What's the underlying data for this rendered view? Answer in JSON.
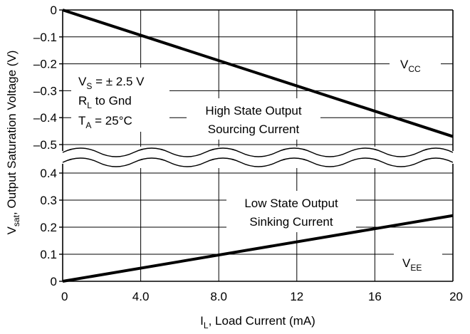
{
  "chart_data": {
    "type": "line",
    "x": {
      "label": "L",
      "label_prefix": "I",
      "label_rest": ", Load Current (mA)",
      "range": [
        0,
        20
      ],
      "ticks": [
        0,
        4.0,
        8.0,
        12,
        16,
        20
      ],
      "tick_labels": [
        "0",
        "4.0",
        "8.0",
        "12",
        "16",
        "20"
      ]
    },
    "y": {
      "label_prefix": "V",
      "label_sub": "sat",
      "label_rest": ", Output Saturation Voltage (V)",
      "upper_range": [
        -0.5,
        0
      ],
      "upper_ticks": [
        0,
        -0.1,
        -0.2,
        -0.3,
        -0.4,
        -0.5
      ],
      "upper_tick_labels": [
        "0",
        "–0.1",
        "–0.2",
        "–0.3",
        "–0.4",
        "–0.5"
      ],
      "lower_range": [
        0,
        0.4
      ],
      "lower_ticks": [
        0.4,
        0.3,
        0.2,
        0.1,
        0
      ],
      "lower_tick_labels": [
        "0.4",
        "0.3",
        "0.2",
        "0.1",
        "0"
      ]
    },
    "grid": true,
    "series": [
      {
        "name": "VCC",
        "label_main": "V",
        "label_sub": "CC",
        "description": [
          "High State Output",
          "Sourcing Current"
        ],
        "panel": "upper",
        "points": [
          [
            0,
            0
          ],
          [
            20,
            -0.47
          ]
        ]
      },
      {
        "name": "VEE",
        "label_main": "V",
        "label_sub": "EE",
        "description": [
          "Low State Output",
          "Sinking Current"
        ],
        "panel": "lower",
        "points": [
          [
            0,
            0
          ],
          [
            20,
            0.243
          ]
        ]
      }
    ],
    "conditions": [
      {
        "main": "V",
        "sub": "S",
        "rest": " = ± 2.5 V"
      },
      {
        "main": "R",
        "sub": "L",
        "rest": " to Gnd"
      },
      {
        "main": "T",
        "sub": "A",
        "rest": " = 25°C"
      }
    ]
  }
}
